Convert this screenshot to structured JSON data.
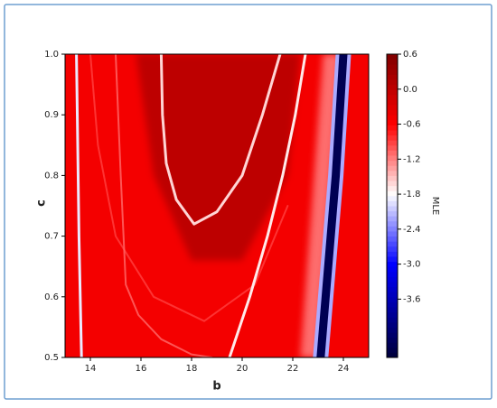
{
  "chart_data": {
    "type": "contour",
    "xlabel": "b",
    "ylabel": "c",
    "colorbar_label": "MLE",
    "xlim": [
      13,
      25
    ],
    "xticks": [
      14,
      16,
      18,
      20,
      22,
      24
    ],
    "ylim": [
      0.5,
      1.0
    ],
    "yticks": [
      0.5,
      0.6,
      0.7,
      0.8,
      0.9,
      {
        "value": 1,
        "label": "1.0"
      }
    ],
    "clim": [
      -4.6,
      0.6
    ],
    "cticks": [
      0.6,
      {
        "value": 0,
        "label": "0.0"
      },
      -0.6,
      -1.2,
      -1.8,
      -2.4,
      {
        "value": -3,
        "label": "-3.0"
      },
      -3.6
    ],
    "colormap": [
      {
        "value": -4.6,
        "color": "#00003a"
      },
      {
        "value": -3.0,
        "color": "#0000ff"
      },
      {
        "value": -1.8,
        "color": "#ffffff"
      },
      {
        "value": -0.6,
        "color": "#ff0000"
      },
      {
        "value": 0.6,
        "color": "#7f0000"
      }
    ],
    "background_level": -0.5,
    "regions": [
      {
        "level": 0.1,
        "x": [
          15.8,
          16.5,
          18,
          20,
          21.8,
          22.3
        ],
        "y": [
          1.0,
          0.8,
          0.66,
          0.66,
          0.8,
          1.0
        ]
      },
      {
        "level": -1.2,
        "x": [
          22.3,
          23.0,
          23.9,
          23.2
        ],
        "y": [
          0.5,
          0.5,
          1.0,
          1.0
        ]
      }
    ],
    "curves": [
      {
        "level": -0.9,
        "x": [
          14.0,
          14.3,
          15.0,
          16.5,
          18.5,
          20.5,
          21.8
        ],
        "y": [
          1.0,
          0.85,
          0.7,
          0.6,
          0.56,
          0.62,
          0.75
        ]
      },
      {
        "level": -1.1,
        "x": [
          15.0,
          15.2,
          15.4,
          15.9,
          16.8,
          18.0,
          18.8
        ],
        "y": [
          1.0,
          0.8,
          0.62,
          0.57,
          0.53,
          0.505,
          0.5
        ]
      },
      {
        "level": -1.9,
        "x": [
          13.65,
          13.6,
          13.55,
          13.5,
          13.45
        ],
        "y": [
          0.5,
          0.6,
          0.7,
          0.85,
          1.0
        ]
      },
      {
        "level": -1.6,
        "x": [
          16.8,
          16.85,
          17.0,
          17.4,
          18.1,
          19.0,
          20.0,
          20.8,
          21.5
        ],
        "y": [
          1.0,
          0.9,
          0.82,
          0.76,
          0.72,
          0.74,
          0.8,
          0.9,
          1.0
        ]
      },
      {
        "level": -1.7,
        "x": [
          19.5,
          20.3,
          21.0,
          21.6,
          22.1,
          22.5
        ],
        "y": [
          0.5,
          0.6,
          0.7,
          0.8,
          0.9,
          1.0
        ]
      },
      {
        "level": -2.2,
        "x": [
          23.1,
          23.3,
          23.5,
          23.7,
          23.85,
          24.0
        ],
        "y": [
          0.5,
          0.6,
          0.7,
          0.8,
          0.9,
          1.0
        ]
      },
      {
        "level": -4.4,
        "x": [
          23.1,
          23.3,
          23.5,
          23.7,
          23.85,
          24.0
        ],
        "y": [
          0.5,
          0.6,
          0.7,
          0.8,
          0.9,
          1.0
        ]
      }
    ]
  }
}
